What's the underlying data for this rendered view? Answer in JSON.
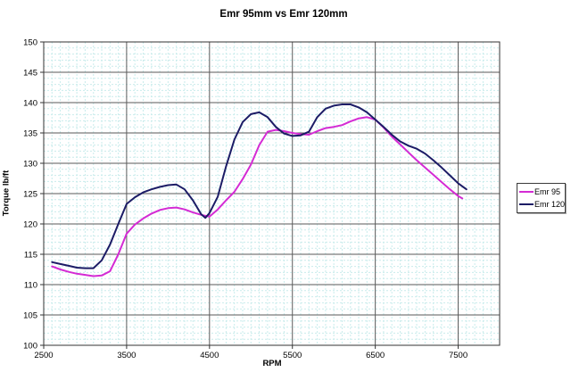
{
  "title": "Emr 95mm vs Emr 120mm",
  "axes": {
    "x": {
      "label": "RPM",
      "min": 2500,
      "max": 8000,
      "major_step": 1000,
      "minor_step": 100,
      "ticks": [
        2500,
        3500,
        4500,
        5500,
        6500,
        7500
      ]
    },
    "y": {
      "label": "Torque lb/ft",
      "min": 100,
      "max": 150,
      "major_step": 5,
      "minor_step": 1,
      "ticks": [
        100,
        105,
        110,
        115,
        120,
        125,
        130,
        135,
        140,
        145,
        150
      ]
    }
  },
  "colors": {
    "background": "#ffffff",
    "plot_background": "#ffffff",
    "minor_grid": "#c9ecec",
    "major_grid": "#5a5a5a",
    "border": "#333333",
    "series_emr95": "#d42bd4",
    "series_emr120": "#1c1c66"
  },
  "legend": {
    "entries": [
      {
        "label": "Emr 95",
        "color": "#d42bd4"
      },
      {
        "label": "Emr 120",
        "color": "#1c1c66"
      }
    ]
  },
  "chart_data": {
    "type": "line",
    "title": "Emr 95mm vs Emr 120mm",
    "xlabel": "RPM",
    "ylabel": "Torque lb/ft",
    "xlim": [
      2500,
      8000
    ],
    "ylim": [
      100,
      150
    ],
    "grid": "major and minor gridlines, minor dotted light cyan",
    "legend_position": "right outside plot",
    "series": [
      {
        "name": "Emr 95",
        "color": "#d42bd4",
        "points": [
          [
            2600,
            113.0
          ],
          [
            2700,
            112.5
          ],
          [
            2800,
            112.1
          ],
          [
            2900,
            111.8
          ],
          [
            3000,
            111.6
          ],
          [
            3100,
            111.4
          ],
          [
            3200,
            111.5
          ],
          [
            3300,
            112.2
          ],
          [
            3400,
            115.0
          ],
          [
            3500,
            118.4
          ],
          [
            3600,
            119.9
          ],
          [
            3700,
            120.9
          ],
          [
            3800,
            121.7
          ],
          [
            3900,
            122.3
          ],
          [
            4000,
            122.6
          ],
          [
            4100,
            122.7
          ],
          [
            4200,
            122.4
          ],
          [
            4300,
            121.9
          ],
          [
            4400,
            121.5
          ],
          [
            4500,
            121.2
          ],
          [
            4600,
            122.4
          ],
          [
            4700,
            123.9
          ],
          [
            4800,
            125.3
          ],
          [
            4900,
            127.4
          ],
          [
            5000,
            129.8
          ],
          [
            5100,
            133.0
          ],
          [
            5200,
            135.2
          ],
          [
            5300,
            135.5
          ],
          [
            5400,
            135.3
          ],
          [
            5500,
            135.0
          ],
          [
            5600,
            134.8
          ],
          [
            5700,
            134.7
          ],
          [
            5800,
            135.3
          ],
          [
            5900,
            135.8
          ],
          [
            6000,
            136.0
          ],
          [
            6100,
            136.3
          ],
          [
            6200,
            136.9
          ],
          [
            6300,
            137.4
          ],
          [
            6400,
            137.6
          ],
          [
            6500,
            137.2
          ],
          [
            6600,
            135.9
          ],
          [
            6700,
            134.4
          ],
          [
            6800,
            133.1
          ],
          [
            6900,
            131.8
          ],
          [
            7000,
            130.5
          ],
          [
            7100,
            129.3
          ],
          [
            7200,
            128.1
          ],
          [
            7300,
            126.9
          ],
          [
            7400,
            125.7
          ],
          [
            7500,
            124.6
          ],
          [
            7550,
            124.2
          ]
        ]
      },
      {
        "name": "Emr 120",
        "color": "#1c1c66",
        "points": [
          [
            2600,
            113.7
          ],
          [
            2700,
            113.4
          ],
          [
            2800,
            113.1
          ],
          [
            2900,
            112.8
          ],
          [
            3000,
            112.7
          ],
          [
            3100,
            112.7
          ],
          [
            3200,
            114.0
          ],
          [
            3300,
            116.6
          ],
          [
            3400,
            120.0
          ],
          [
            3500,
            123.3
          ],
          [
            3600,
            124.4
          ],
          [
            3700,
            125.2
          ],
          [
            3800,
            125.7
          ],
          [
            3900,
            126.1
          ],
          [
            4000,
            126.4
          ],
          [
            4100,
            126.5
          ],
          [
            4200,
            125.7
          ],
          [
            4300,
            123.9
          ],
          [
            4400,
            121.6
          ],
          [
            4450,
            121.0
          ],
          [
            4500,
            121.8
          ],
          [
            4600,
            124.5
          ],
          [
            4700,
            129.5
          ],
          [
            4800,
            133.9
          ],
          [
            4900,
            136.8
          ],
          [
            5000,
            138.1
          ],
          [
            5100,
            138.4
          ],
          [
            5200,
            137.6
          ],
          [
            5300,
            136.0
          ],
          [
            5400,
            134.9
          ],
          [
            5500,
            134.5
          ],
          [
            5600,
            134.6
          ],
          [
            5700,
            135.2
          ],
          [
            5800,
            137.6
          ],
          [
            5900,
            139.0
          ],
          [
            6000,
            139.5
          ],
          [
            6100,
            139.7
          ],
          [
            6200,
            139.7
          ],
          [
            6300,
            139.2
          ],
          [
            6400,
            138.4
          ],
          [
            6500,
            137.2
          ],
          [
            6600,
            136.0
          ],
          [
            6700,
            134.7
          ],
          [
            6800,
            133.6
          ],
          [
            6900,
            132.9
          ],
          [
            7000,
            132.4
          ],
          [
            7100,
            131.6
          ],
          [
            7200,
            130.5
          ],
          [
            7300,
            129.3
          ],
          [
            7400,
            128.0
          ],
          [
            7500,
            126.7
          ],
          [
            7600,
            125.7
          ]
        ]
      }
    ]
  }
}
